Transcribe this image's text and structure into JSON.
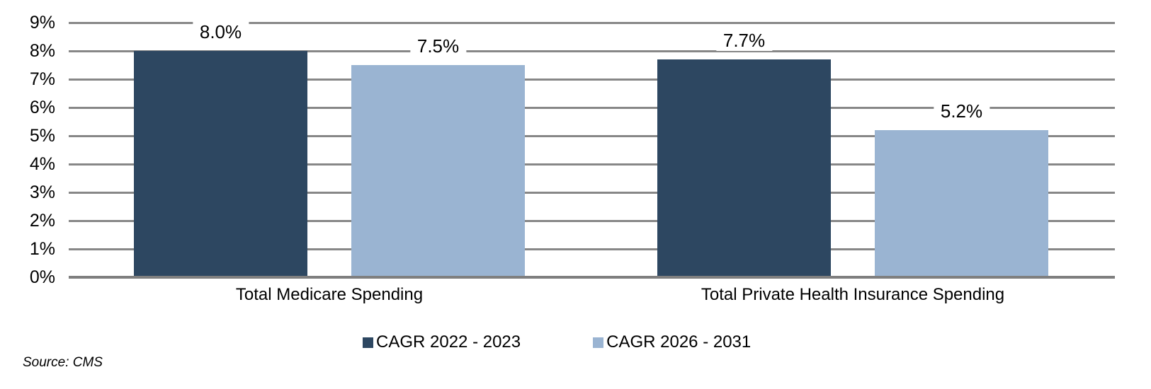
{
  "chart_data": {
    "type": "bar",
    "title": "",
    "xlabel": "",
    "ylabel": "",
    "categories": [
      "Total Medicare Spending",
      "Total Private Health Insurance Spending"
    ],
    "series": [
      {
        "name": "CAGR 2022 - 2023",
        "color": "#2D4761",
        "values": [
          8.0,
          7.7
        ]
      },
      {
        "name": "CAGR 2026 - 2031",
        "color": "#9AB4D2",
        "values": [
          7.5,
          5.2
        ]
      }
    ],
    "data_labels": [
      [
        "8.0%",
        "7.7%"
      ],
      [
        "7.5%",
        "5.2%"
      ]
    ],
    "ylim": [
      0,
      9
    ],
    "ytick_step": 1,
    "ytick_labels": [
      "0%",
      "1%",
      "2%",
      "3%",
      "4%",
      "5%",
      "6%",
      "7%",
      "8%",
      "9%"
    ],
    "grid": true,
    "legend_position": "bottom"
  },
  "colors": {
    "gridline": "#878787",
    "axis": "#7F7F7F",
    "text": "#000000",
    "background": "#FFFFFF"
  },
  "source_note": "Source: CMS"
}
